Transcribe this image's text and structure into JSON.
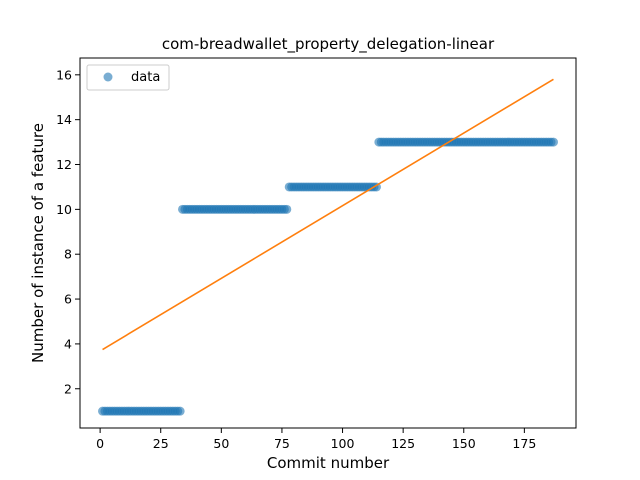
{
  "chart_data": {
    "type": "scatter",
    "title": "com-breadwallet_property_delegation-linear",
    "xlabel": "Commit number",
    "ylabel": "Number of instance of a feature",
    "xlim": [
      -8.3,
      196.3
    ],
    "ylim": [
      0.25,
      16.75
    ],
    "xticks": [
      0,
      25,
      50,
      75,
      100,
      125,
      150,
      175
    ],
    "yticks": [
      2,
      4,
      6,
      8,
      10,
      12,
      14,
      16
    ],
    "legend": {
      "placement": "upper-left",
      "entries": [
        "data"
      ]
    },
    "grid": false,
    "series": [
      {
        "name": "data",
        "kind": "points",
        "color": "#1f77b4",
        "alpha": 0.6,
        "segments": [
          {
            "x_start": 1,
            "x_end": 33,
            "y": 1
          },
          {
            "x_start": 34,
            "x_end": 77,
            "y": 10
          },
          {
            "x_start": 78,
            "x_end": 114,
            "y": 11
          },
          {
            "x_start": 115,
            "x_end": 187,
            "y": 13
          }
        ]
      },
      {
        "kind": "line",
        "color": "#ff7f0e",
        "x": [
          1,
          187
        ],
        "y": [
          3.75,
          15.8
        ]
      }
    ]
  }
}
